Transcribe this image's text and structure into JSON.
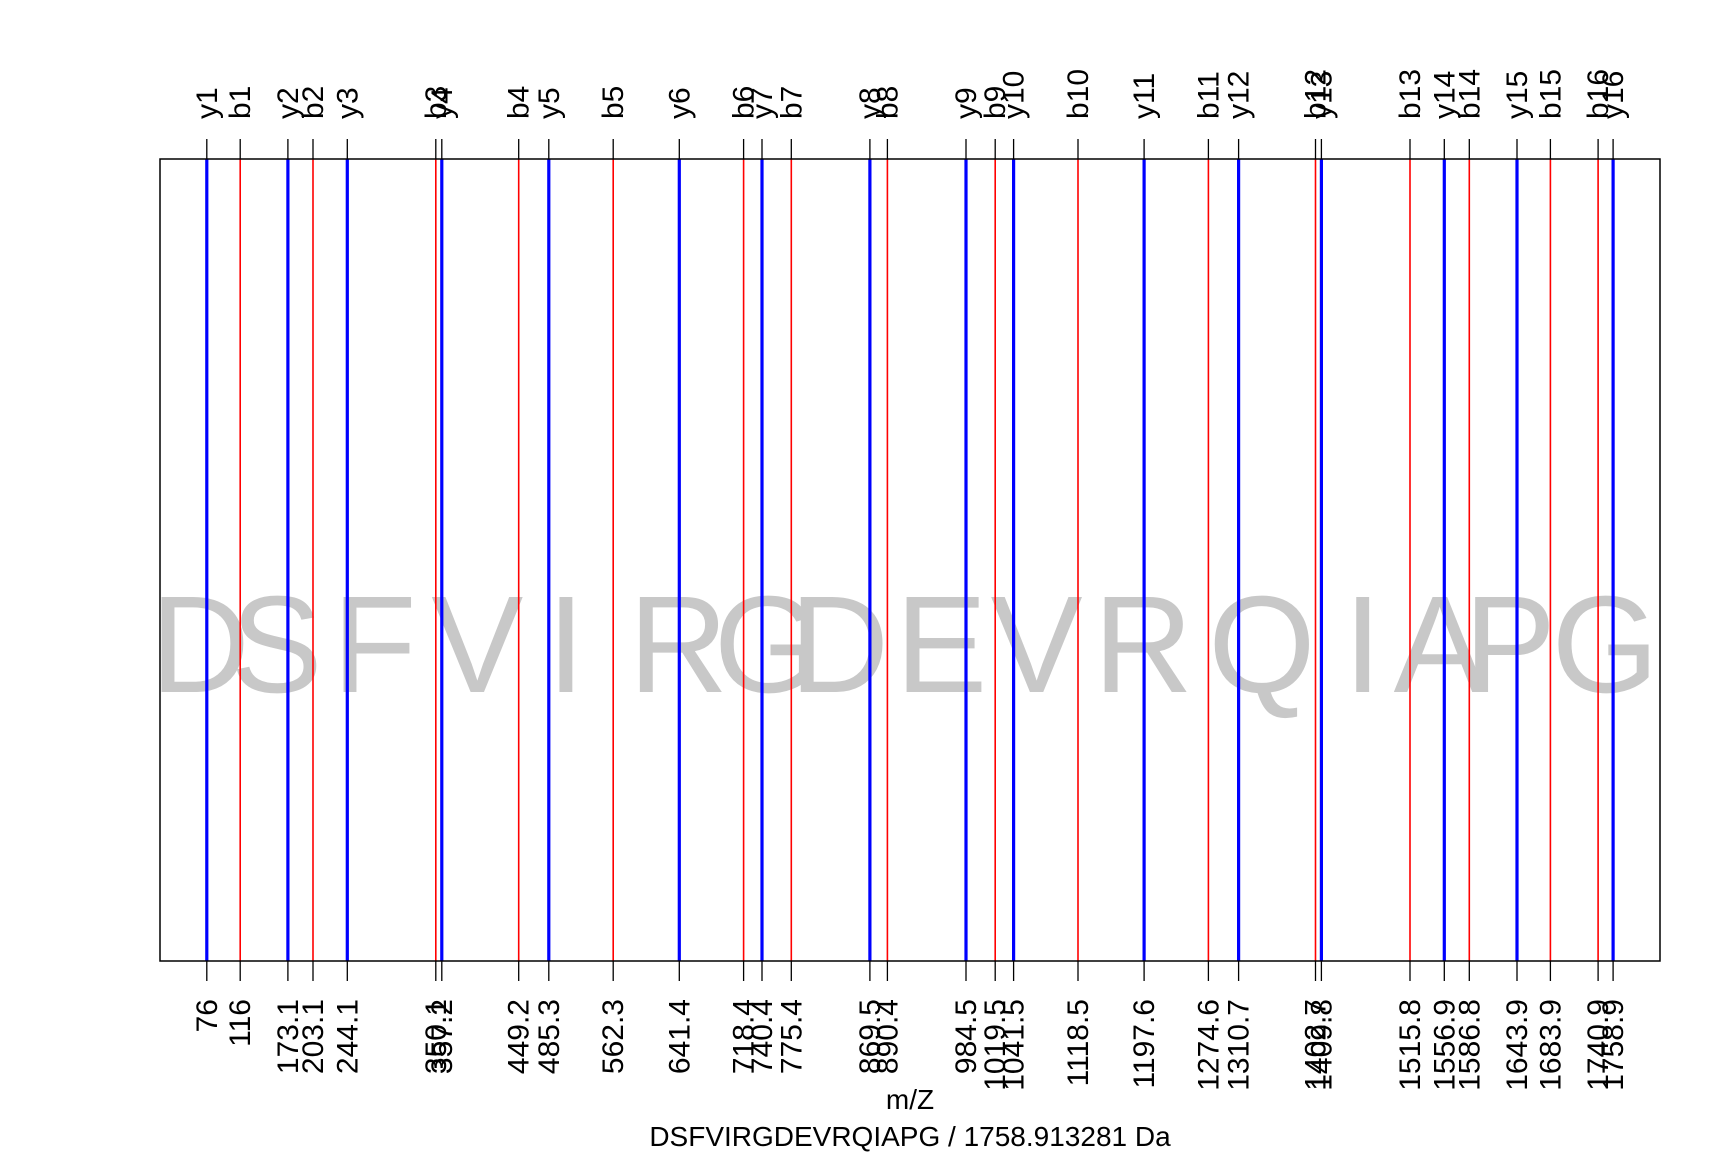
{
  "chart_data": {
    "type": "fragment-ion-spectrum",
    "title": "DSFVIRGDEVRQIAPG / 1758.913281 Da",
    "peptide": "DSFVIRGDEVRQIAPG",
    "mass": "1758.913281 Da",
    "xlabel": "m/Z",
    "xlim": [
      20,
      1815
    ],
    "colors": {
      "b": "#ff0000",
      "y": "#0000ff",
      "frame": "#000000",
      "sequence": "#c8c8c8"
    },
    "sequence_letters": [
      {
        "letter": "D",
        "from": 20,
        "to": 116
      },
      {
        "letter": "S",
        "from": 116,
        "to": 203.1
      },
      {
        "letter": "F",
        "from": 203.1,
        "to": 350.1
      },
      {
        "letter": "V",
        "from": 350.1,
        "to": 449.2
      },
      {
        "letter": "I",
        "from": 449.2,
        "to": 562.3
      },
      {
        "letter": "R",
        "from": 562.3,
        "to": 718.4
      },
      {
        "letter": "G",
        "from": 718.4,
        "to": 775.4
      },
      {
        "letter": "D",
        "from": 775.4,
        "to": 890.4
      },
      {
        "letter": "E",
        "from": 890.4,
        "to": 1019.5
      },
      {
        "letter": "V",
        "from": 1019.5,
        "to": 1118.5
      },
      {
        "letter": "R",
        "from": 1118.5,
        "to": 1274.6
      },
      {
        "letter": "Q",
        "from": 1274.6,
        "to": 1402.7
      },
      {
        "letter": "I",
        "from": 1402.7,
        "to": 1515.8
      },
      {
        "letter": "A",
        "from": 1515.8,
        "to": 1586.8
      },
      {
        "letter": "P",
        "from": 1586.8,
        "to": 1683.9
      },
      {
        "letter": "G",
        "from": 1683.9,
        "to": 1815
      }
    ],
    "ions": [
      {
        "name": "y1",
        "series": "y",
        "mz": 76,
        "tick": "76"
      },
      {
        "name": "b1",
        "series": "b",
        "mz": 116,
        "tick": "116"
      },
      {
        "name": "y2",
        "series": "y",
        "mz": 173.1,
        "tick": "173.1"
      },
      {
        "name": "b2",
        "series": "b",
        "mz": 203.1,
        "tick": "203.1"
      },
      {
        "name": "y3",
        "series": "y",
        "mz": 244.1,
        "tick": "244.1"
      },
      {
        "name": "b3",
        "series": "b",
        "mz": 350.1,
        "tick": "350.1"
      },
      {
        "name": "y4",
        "series": "y",
        "mz": 357.2,
        "tick": "357.2"
      },
      {
        "name": "b4",
        "series": "b",
        "mz": 449.2,
        "tick": "449.2"
      },
      {
        "name": "y5",
        "series": "y",
        "mz": 485.3,
        "tick": "485.3"
      },
      {
        "name": "b5",
        "series": "b",
        "mz": 562.3,
        "tick": "562.3"
      },
      {
        "name": "y6",
        "series": "y",
        "mz": 641.4,
        "tick": "641.4"
      },
      {
        "name": "b6",
        "series": "b",
        "mz": 718.4,
        "tick": "718.4"
      },
      {
        "name": "y7",
        "series": "y",
        "mz": 740.4,
        "tick": "740.4"
      },
      {
        "name": "b7",
        "series": "b",
        "mz": 775.4,
        "tick": "775.4"
      },
      {
        "name": "y8",
        "series": "y",
        "mz": 869.5,
        "tick": "869.5"
      },
      {
        "name": "b8",
        "series": "b",
        "mz": 890.4,
        "tick": "890.4"
      },
      {
        "name": "y9",
        "series": "y",
        "mz": 984.5,
        "tick": "984.5"
      },
      {
        "name": "b9",
        "series": "b",
        "mz": 1019.5,
        "tick": "1019.5"
      },
      {
        "name": "y10",
        "series": "y",
        "mz": 1041.5,
        "tick": "1041.5"
      },
      {
        "name": "b10",
        "series": "b",
        "mz": 1118.5,
        "tick": "1118.5"
      },
      {
        "name": "y11",
        "series": "y",
        "mz": 1197.6,
        "tick": "1197.6"
      },
      {
        "name": "b11",
        "series": "b",
        "mz": 1274.6,
        "tick": "1274.6"
      },
      {
        "name": "y12",
        "series": "y",
        "mz": 1310.7,
        "tick": "1310.7"
      },
      {
        "name": "b12",
        "series": "b",
        "mz": 1402.7,
        "tick": "1402.7"
      },
      {
        "name": "y13",
        "series": "y",
        "mz": 1409.8,
        "tick": "1409.8"
      },
      {
        "name": "b13",
        "series": "b",
        "mz": 1515.8,
        "tick": "1515.8"
      },
      {
        "name": "y14",
        "series": "y",
        "mz": 1556.9,
        "tick": "1556.9"
      },
      {
        "name": "b14",
        "series": "b",
        "mz": 1586.8,
        "tick": "1586.8"
      },
      {
        "name": "y15",
        "series": "y",
        "mz": 1643.9,
        "tick": "1643.9"
      },
      {
        "name": "b15",
        "series": "b",
        "mz": 1683.9,
        "tick": "1683.9"
      },
      {
        "name": "b16",
        "series": "b",
        "mz": 1740.9,
        "tick": "1740.9"
      },
      {
        "name": "y16",
        "series": "y",
        "mz": 1758.9,
        "tick": "1758.9"
      }
    ]
  }
}
